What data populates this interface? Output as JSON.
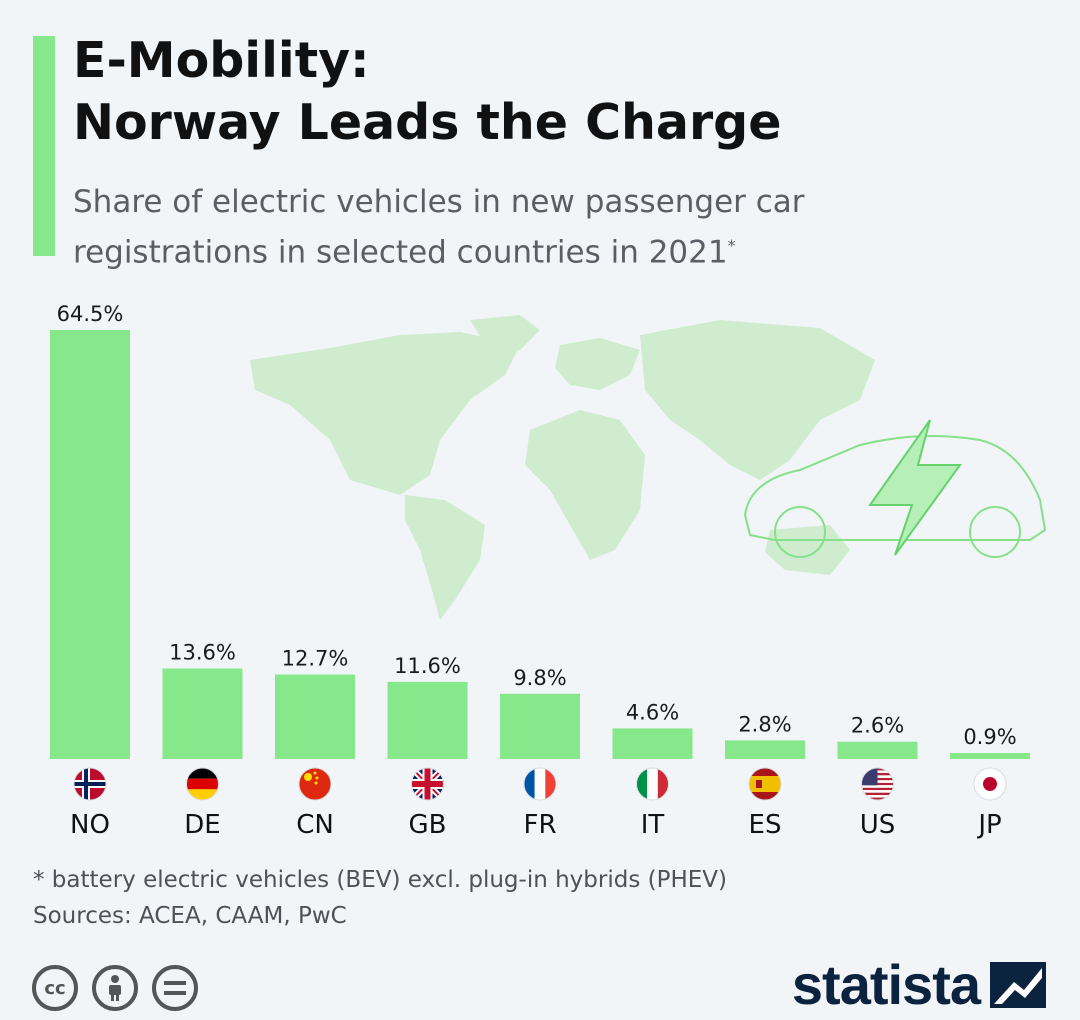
{
  "title_line1": "E-Mobility:",
  "title_line2": "Norway Leads the Charge",
  "subtitle_line1": "Share of electric vehicles in new passenger car",
  "subtitle_line2": "registrations in selected countries in 2021",
  "subtitle_marker": "*",
  "footnote": "* battery electric vehicles (BEV) excl. plug-in hybrids (PHEV)",
  "sources": "Sources: ACEA, CAAM, PwC",
  "brand": "statista",
  "colors": {
    "bar": "#86e88a",
    "map": "#cdebcd",
    "car_outline": "#7fdc85"
  },
  "icons": {
    "cc": "creative-commons-icon",
    "by": "attribution-icon",
    "nd": "no-derivatives-icon"
  },
  "chart_data": {
    "type": "bar",
    "title": "E-Mobility: Norway Leads the Charge",
    "ylabel": "Share of electric vehicles in new passenger car registrations (%)",
    "categories": [
      "NO",
      "DE",
      "CN",
      "GB",
      "FR",
      "IT",
      "ES",
      "US",
      "JP"
    ],
    "values": [
      64.5,
      13.6,
      12.7,
      11.6,
      9.8,
      4.6,
      2.8,
      2.6,
      0.9
    ],
    "value_labels": [
      "64.5%",
      "13.6%",
      "12.7%",
      "11.6%",
      "9.8%",
      "4.6%",
      "2.8%",
      "2.6%",
      "0.9%"
    ],
    "ylim": [
      0,
      64.5
    ],
    "grid": false
  }
}
